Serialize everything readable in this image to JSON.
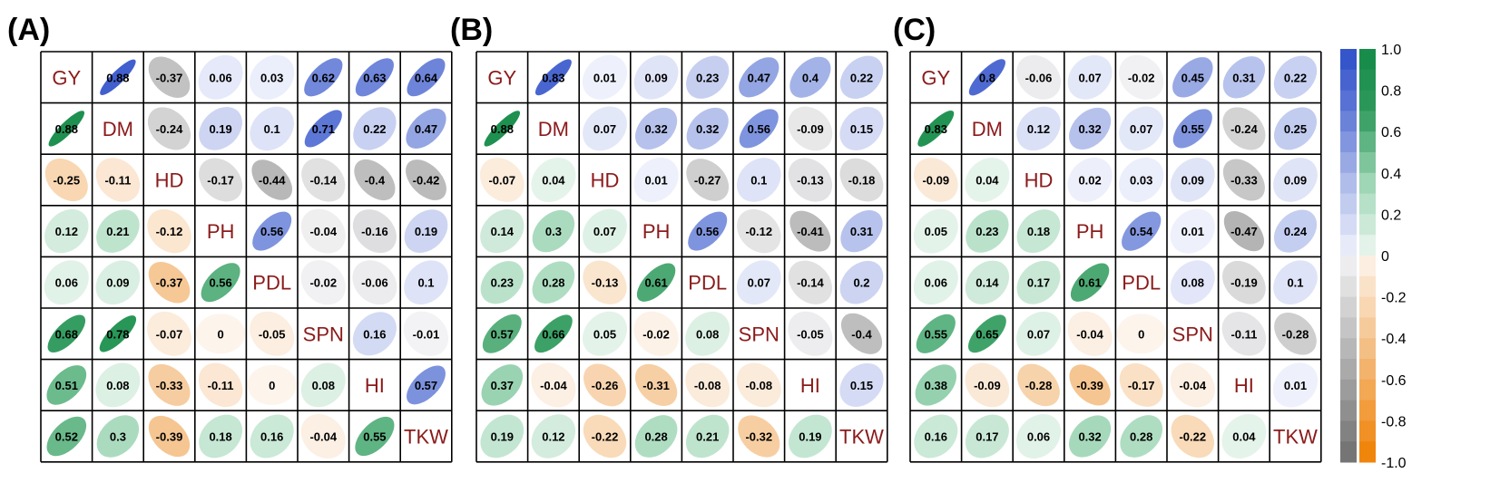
{
  "chart_data": {
    "type": "heatmap",
    "variables": [
      "GY",
      "DM",
      "HD",
      "PH",
      "PDL",
      "SPN",
      "HI",
      "TKW"
    ],
    "upper_scale": "blue-grey",
    "lower_scale": "green-orange",
    "colorbar": {
      "ticks": [
        "1.0",
        "0.8",
        "0.6",
        "0.4",
        "0.2",
        "0",
        "-0.2",
        "-0.4",
        "-0.6",
        "-0.8",
        "-1.0"
      ],
      "range": [
        -1,
        1
      ]
    },
    "panels": [
      {
        "label": "(A)",
        "matrix": [
          [
            null,
            0.88,
            -0.37,
            0.06,
            0.03,
            0.62,
            0.63,
            0.64
          ],
          [
            0.88,
            null,
            -0.24,
            0.19,
            0.1,
            0.71,
            0.22,
            0.47
          ],
          [
            -0.25,
            -0.11,
            null,
            -0.17,
            -0.44,
            -0.14,
            -0.4,
            -0.42
          ],
          [
            0.12,
            0.21,
            -0.12,
            null,
            0.56,
            -0.04,
            -0.16,
            0.19
          ],
          [
            0.06,
            0.09,
            -0.37,
            0.56,
            null,
            -0.02,
            -0.06,
            0.1
          ],
          [
            0.68,
            0.78,
            -0.07,
            0,
            -0.05,
            null,
            0.16,
            -0.01
          ],
          [
            0.51,
            0.08,
            -0.33,
            -0.11,
            0,
            0.08,
            null,
            0.57
          ],
          [
            0.52,
            0.3,
            -0.39,
            0.18,
            0.16,
            -0.04,
            0.55,
            null
          ]
        ]
      },
      {
        "label": "(B)",
        "matrix": [
          [
            null,
            0.83,
            0.01,
            0.09,
            0.23,
            0.47,
            0.4,
            0.22
          ],
          [
            0.88,
            null,
            0.07,
            0.32,
            0.32,
            0.56,
            -0.09,
            0.15
          ],
          [
            -0.07,
            0.04,
            null,
            0.01,
            -0.27,
            0.1,
            -0.13,
            -0.18
          ],
          [
            0.14,
            0.3,
            0.07,
            null,
            0.56,
            -0.12,
            -0.41,
            0.31
          ],
          [
            0.23,
            0.28,
            -0.13,
            0.61,
            null,
            0.07,
            -0.14,
            0.2
          ],
          [
            0.57,
            0.66,
            0.05,
            -0.02,
            0.08,
            null,
            -0.05,
            -0.4
          ],
          [
            0.37,
            -0.04,
            -0.26,
            -0.31,
            -0.08,
            -0.08,
            null,
            0.15
          ],
          [
            0.19,
            0.12,
            -0.22,
            0.28,
            0.21,
            -0.32,
            0.19,
            null
          ]
        ]
      },
      {
        "label": "(C)",
        "matrix": [
          [
            null,
            0.8,
            -0.06,
            0.07,
            -0.02,
            0.45,
            0.31,
            0.22
          ],
          [
            0.83,
            null,
            0.12,
            0.32,
            0.07,
            0.55,
            -0.24,
            0.25
          ],
          [
            -0.09,
            0.04,
            null,
            0.02,
            0.03,
            0.09,
            -0.33,
            0.09
          ],
          [
            0.05,
            0.23,
            0.18,
            null,
            0.54,
            0.01,
            -0.47,
            0.24
          ],
          [
            0.06,
            0.14,
            0.17,
            0.61,
            null,
            0.08,
            -0.19,
            0.1
          ],
          [
            0.55,
            0.65,
            0.07,
            -0.04,
            0,
            null,
            -0.11,
            -0.28
          ],
          [
            0.38,
            -0.09,
            -0.28,
            -0.39,
            -0.17,
            -0.04,
            null,
            0.01
          ],
          [
            0.16,
            0.17,
            0.06,
            0.32,
            0.28,
            -0.22,
            0.04,
            null
          ]
        ]
      }
    ]
  }
}
